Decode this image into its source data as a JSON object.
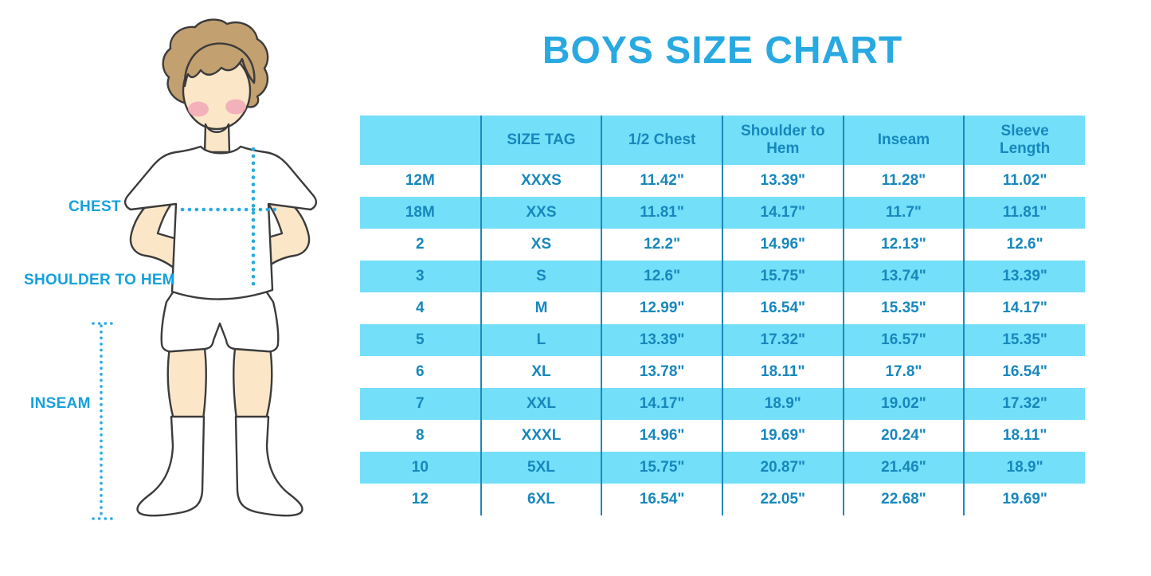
{
  "title": "BOYS SIZE CHART",
  "figure": {
    "labels": {
      "chest": "CHEST",
      "shoulder_to_hem": "SHOULDER TO HEM",
      "inseam": "INSEAM"
    }
  },
  "chart_data": {
    "type": "table",
    "title": "BOYS SIZE CHART",
    "columns": [
      "",
      "SIZE TAG",
      "1/2 Chest",
      "Shoulder to Hem",
      "Inseam",
      "Sleeve Length"
    ],
    "rows": [
      [
        "12M",
        "XXXS",
        "11.42\"",
        "13.39\"",
        "11.28\"",
        "11.02\""
      ],
      [
        "18M",
        "XXS",
        "11.81\"",
        "14.17\"",
        "11.7\"",
        "11.81\""
      ],
      [
        "2",
        "XS",
        "12.2\"",
        "14.96\"",
        "12.13\"",
        "12.6\""
      ],
      [
        "3",
        "S",
        "12.6\"",
        "15.75\"",
        "13.74\"",
        "13.39\""
      ],
      [
        "4",
        "M",
        "12.99\"",
        "16.54\"",
        "15.35\"",
        "14.17\""
      ],
      [
        "5",
        "L",
        "13.39\"",
        "17.32\"",
        "16.57\"",
        "15.35\""
      ],
      [
        "6",
        "XL",
        "13.78\"",
        "18.11\"",
        "17.8\"",
        "16.54\""
      ],
      [
        "7",
        "XXL",
        "14.17\"",
        "18.9\"",
        "19.02\"",
        "17.32\""
      ],
      [
        "8",
        "XXXL",
        "14.96\"",
        "19.69\"",
        "20.24\"",
        "18.11\""
      ],
      [
        "10",
        "5XL",
        "15.75\"",
        "20.87\"",
        "21.46\"",
        "18.9\""
      ],
      [
        "12",
        "6XL",
        "16.54\"",
        "22.05\"",
        "22.68\"",
        "19.69\""
      ]
    ],
    "layout": {
      "header_fill_alternating_rows": true,
      "grid": "vertical-dividers-only"
    }
  },
  "colors": {
    "title_blue": "#29A9E1",
    "label_blue": "#15A1DC",
    "stripe_blue": "#73DFF9",
    "divider_blue": "#1E88BB",
    "table_text_blue": "#1787BC",
    "dotted_line_blue": "#29ABE2",
    "skin": "#FBE7C8",
    "hair": "#C2A06F",
    "cheek": "#F2A4B6",
    "outline": "#3B3B3B"
  }
}
